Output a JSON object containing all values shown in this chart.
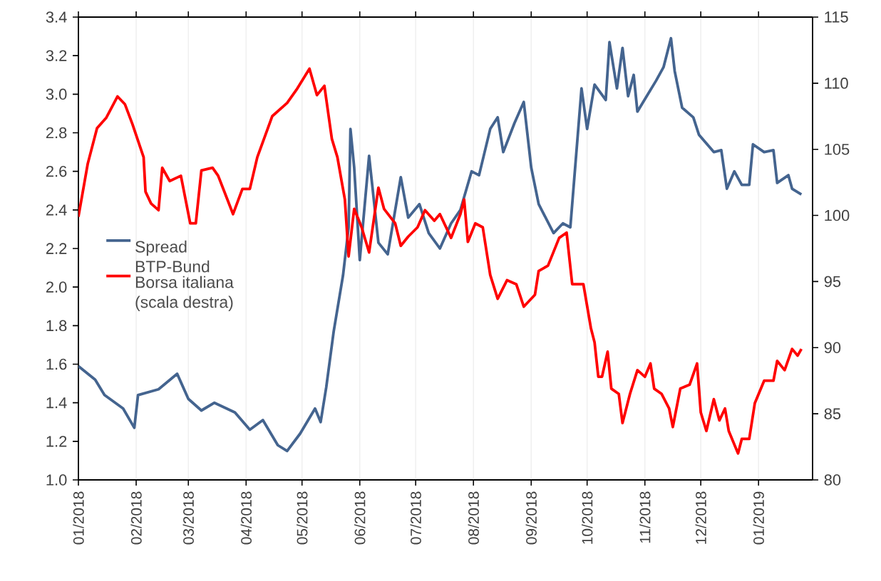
{
  "chart_data": {
    "type": "line",
    "grid": "x",
    "legend": "left",
    "line_style": "solid",
    "marker": "none",
    "xlim": [
      "2018-01-01",
      "2019-01-30"
    ],
    "xticks": [
      {
        "value": "2018-01-01",
        "label": "01/2018"
      },
      {
        "value": "2018-02-01",
        "label": "02/2018"
      },
      {
        "value": "2018-03-01",
        "label": "03/2018"
      },
      {
        "value": "2018-04-01",
        "label": "04/2018"
      },
      {
        "value": "2018-05-01",
        "label": "05/2018"
      },
      {
        "value": "2018-06-01",
        "label": "06/2018"
      },
      {
        "value": "2018-07-01",
        "label": "07/2018"
      },
      {
        "value": "2018-08-01",
        "label": "08/2018"
      },
      {
        "value": "2018-09-01",
        "label": "09/2018"
      },
      {
        "value": "2018-10-01",
        "label": "10/2018"
      },
      {
        "value": "2018-11-01",
        "label": "11/2018"
      },
      {
        "value": "2018-12-01",
        "label": "12/2018"
      },
      {
        "value": "2019-01-01",
        "label": "01/2019"
      }
    ],
    "ylim": [
      1.0,
      3.4
    ],
    "yticks": [
      {
        "value": 1.0,
        "label": "1.0"
      },
      1.2,
      1.4,
      1.6,
      1.8,
      {
        "value": 2.0,
        "label": "2.0"
      },
      2.2,
      2.4,
      2.6,
      2.8,
      {
        "value": 3.0,
        "label": "3.0"
      },
      3.2,
      3.4
    ],
    "y2lim": [
      80,
      115
    ],
    "y2ticks": [
      80,
      85,
      90,
      95,
      100,
      105,
      110,
      115
    ],
    "series": [
      {
        "name": "Spread BTP-Bund",
        "color": "#44648f",
        "x": [
          "2018-01-01",
          "2018-01-10",
          "2018-01-15",
          "2018-01-25",
          "2018-01-31",
          "2018-02-02",
          "2018-02-13",
          "2018-02-23",
          "2018-03-01",
          "2018-03-08",
          "2018-03-15",
          "2018-03-26",
          "2018-04-03",
          "2018-04-10",
          "2018-04-18",
          "2018-04-23",
          "2018-04-30",
          "2018-05-08",
          "2018-05-11",
          "2018-05-14",
          "2018-05-18",
          "2018-05-23",
          "2018-05-26",
          "2018-05-27",
          "2018-05-29",
          "2018-06-01",
          "2018-06-06",
          "2018-06-11",
          "2018-06-16",
          "2018-06-23",
          "2018-06-27",
          "2018-07-03",
          "2018-07-08",
          "2018-07-14",
          "2018-07-20",
          "2018-07-25",
          "2018-07-31",
          "2018-08-04",
          "2018-08-10",
          "2018-08-14",
          "2018-08-17",
          "2018-08-23",
          "2018-08-28",
          "2018-09-01",
          "2018-09-05",
          "2018-09-13",
          "2018-09-18",
          "2018-09-22",
          "2018-09-28",
          "2018-10-01",
          "2018-10-05",
          "2018-10-11",
          "2018-10-13",
          "2018-10-17",
          "2018-10-20",
          "2018-10-23",
          "2018-10-26",
          "2018-10-28",
          "2018-11-02",
          "2018-11-07",
          "2018-11-11",
          "2018-11-15",
          "2018-11-17",
          "2018-11-21",
          "2018-11-27",
          "2018-11-30",
          "2018-12-08",
          "2018-12-12",
          "2018-12-15",
          "2018-12-19",
          "2018-12-23",
          "2018-12-27",
          "2018-12-29",
          "2019-01-04",
          "2019-01-09",
          "2019-01-11",
          "2019-01-17",
          "2019-01-19",
          "2019-01-24"
        ],
        "values": [
          1.59,
          1.52,
          1.44,
          1.37,
          1.27,
          1.44,
          1.47,
          1.55,
          1.42,
          1.36,
          1.4,
          1.35,
          1.26,
          1.31,
          1.18,
          1.15,
          1.24,
          1.37,
          1.3,
          1.48,
          1.77,
          2.06,
          2.31,
          2.82,
          2.62,
          2.14,
          2.68,
          2.23,
          2.17,
          2.57,
          2.36,
          2.43,
          2.28,
          2.2,
          2.33,
          2.4,
          2.6,
          2.58,
          2.82,
          2.88,
          2.7,
          2.85,
          2.96,
          2.62,
          2.43,
          2.28,
          2.33,
          2.31,
          3.03,
          2.82,
          3.05,
          2.97,
          3.27,
          3.03,
          3.24,
          2.99,
          3.1,
          2.91,
          2.99,
          3.07,
          3.14,
          3.29,
          3.12,
          2.93,
          2.88,
          2.79,
          2.7,
          2.71,
          2.51,
          2.6,
          2.53,
          2.53,
          2.74,
          2.7,
          2.71,
          2.54,
          2.58,
          2.51,
          2.48
        ]
      },
      {
        "name": "Borsa italiana (scala destra)",
        "color": "#ff0000",
        "axis": "y2",
        "x": [
          "2018-01-01",
          "2018-01-06",
          "2018-01-11",
          "2018-01-16",
          "2018-01-22",
          "2018-01-26",
          "2018-01-30",
          "2018-02-05",
          "2018-02-06",
          "2018-02-09",
          "2018-02-13",
          "2018-02-15",
          "2018-02-19",
          "2018-02-25",
          "2018-03-02",
          "2018-03-05",
          "2018-03-08",
          "2018-03-14",
          "2018-03-17",
          "2018-03-25",
          "2018-03-30",
          "2018-04-03",
          "2018-04-07",
          "2018-04-15",
          "2018-04-23",
          "2018-04-28",
          "2018-05-05",
          "2018-05-09",
          "2018-05-13",
          "2018-05-17",
          "2018-05-20",
          "2018-05-24",
          "2018-05-26",
          "2018-05-29",
          "2018-06-02",
          "2018-06-06",
          "2018-06-11",
          "2018-06-14",
          "2018-06-20",
          "2018-06-23",
          "2018-06-27",
          "2018-07-02",
          "2018-07-06",
          "2018-07-11",
          "2018-07-14",
          "2018-07-20",
          "2018-07-25",
          "2018-07-27",
          "2018-07-29",
          "2018-08-02",
          "2018-08-06",
          "2018-08-10",
          "2018-08-14",
          "2018-08-19",
          "2018-08-24",
          "2018-08-28",
          "2018-09-03",
          "2018-09-05",
          "2018-09-10",
          "2018-09-16",
          "2018-09-20",
          "2018-09-23",
          "2018-09-29",
          "2018-10-03",
          "2018-10-05",
          "2018-10-07",
          "2018-10-09",
          "2018-10-12",
          "2018-10-14",
          "2018-10-18",
          "2018-10-20",
          "2018-10-24",
          "2018-10-28",
          "2018-11-01",
          "2018-11-04",
          "2018-11-06",
          "2018-11-10",
          "2018-11-14",
          "2018-11-16",
          "2018-11-20",
          "2018-11-25",
          "2018-11-29",
          "2018-12-01",
          "2018-12-04",
          "2018-12-08",
          "2018-12-11",
          "2018-12-14",
          "2018-12-16",
          "2018-12-21",
          "2018-12-23",
          "2018-12-27",
          "2018-12-30",
          "2019-01-04",
          "2019-01-09",
          "2019-01-11",
          "2019-01-15",
          "2019-01-19",
          "2019-01-22",
          "2019-01-24"
        ],
        "values": [
          99.9,
          103.9,
          106.6,
          107.4,
          109.0,
          108.4,
          106.9,
          104.4,
          101.8,
          100.9,
          100.4,
          103.6,
          102.6,
          103.0,
          99.4,
          99.4,
          103.4,
          103.6,
          103.0,
          100.1,
          102.0,
          102.0,
          104.4,
          107.5,
          108.5,
          109.5,
          111.1,
          109.1,
          109.8,
          105.8,
          104.4,
          101.2,
          96.9,
          100.5,
          99.1,
          97.2,
          102.1,
          100.5,
          99.4,
          97.7,
          98.4,
          99.1,
          100.4,
          99.6,
          100.1,
          98.3,
          100.1,
          101.2,
          98.0,
          99.4,
          99.1,
          95.5,
          93.7,
          95.1,
          94.8,
          93.1,
          94.0,
          95.8,
          96.2,
          98.3,
          98.7,
          94.8,
          94.8,
          91.5,
          90.4,
          87.8,
          87.8,
          89.7,
          86.9,
          86.5,
          84.3,
          86.5,
          88.3,
          87.8,
          88.8,
          86.9,
          86.5,
          85.4,
          84.0,
          86.9,
          87.2,
          88.8,
          85.1,
          83.7,
          86.1,
          84.5,
          85.4,
          83.7,
          82.0,
          83.1,
          83.1,
          85.8,
          87.5,
          87.5,
          89.0,
          88.3,
          89.9,
          89.4,
          89.9
        ]
      }
    ]
  }
}
